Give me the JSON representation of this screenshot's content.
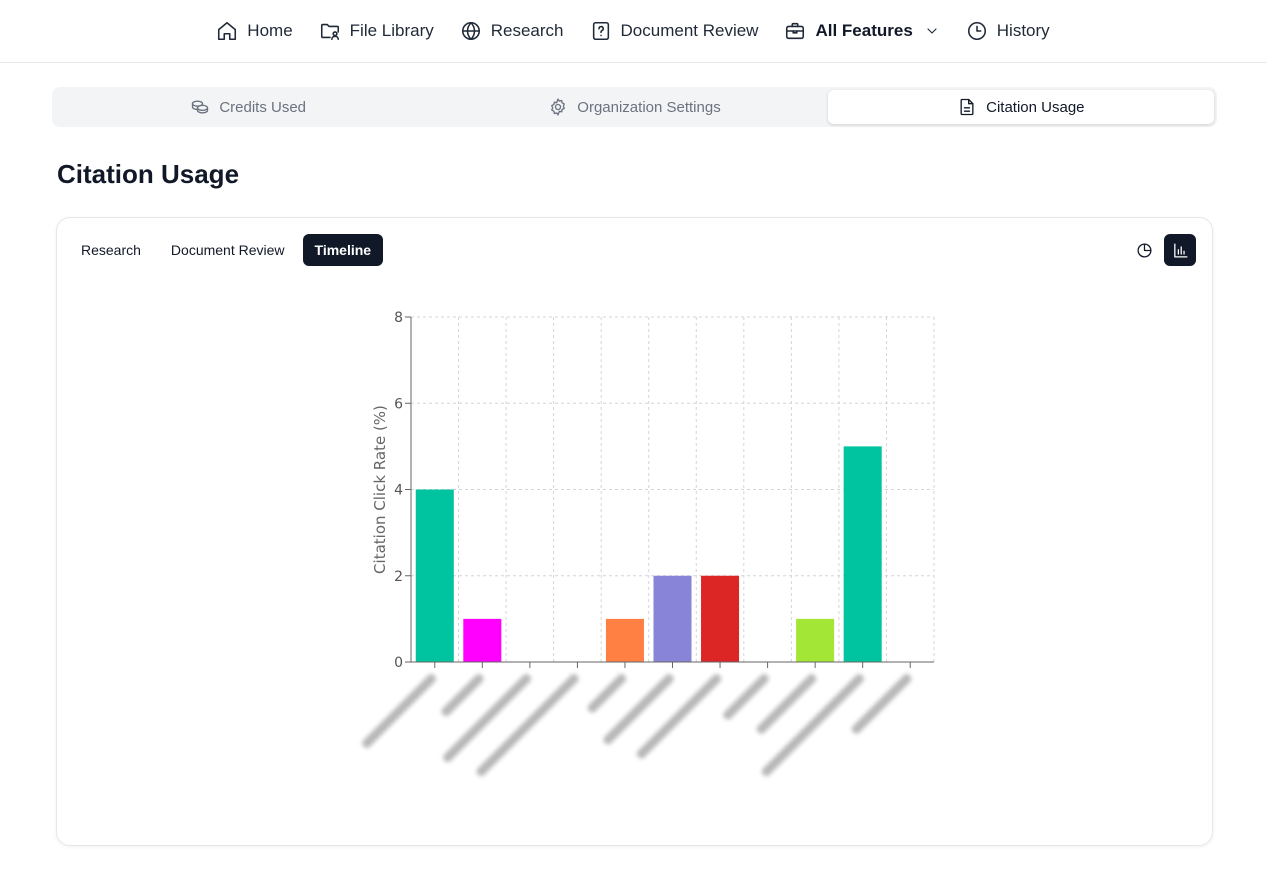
{
  "nav": {
    "items": [
      {
        "label": "Home",
        "icon": "home-icon"
      },
      {
        "label": "File Library",
        "icon": "folder-user-icon"
      },
      {
        "label": "Research",
        "icon": "globe-icon"
      },
      {
        "label": "Document Review",
        "icon": "file-question-icon"
      },
      {
        "label": "All Features",
        "icon": "briefcase-icon"
      },
      {
        "label": "History",
        "icon": "clock-icon"
      }
    ]
  },
  "settings_tabs": [
    {
      "label": "Credits Used",
      "icon": "coins-icon"
    },
    {
      "label": "Organization Settings",
      "icon": "gear-icon"
    },
    {
      "label": "Citation Usage",
      "icon": "document-icon",
      "active": true
    }
  ],
  "page": {
    "title": "Citation Usage"
  },
  "card": {
    "tabs": [
      {
        "label": "Research"
      },
      {
        "label": "Document Review"
      },
      {
        "label": "Timeline",
        "active": true
      }
    ],
    "view_toggle": [
      {
        "icon": "pie-chart-icon",
        "active": false
      },
      {
        "icon": "bar-chart-icon",
        "active": true
      }
    ]
  },
  "chart_data": {
    "type": "bar",
    "ylabel": "Citation Click Rate (%)",
    "ylim": [
      0,
      8
    ],
    "yticks": [
      0,
      2,
      4,
      6,
      8
    ],
    "grid": true,
    "categories": [
      "",
      "",
      "",
      "",
      "",
      "",
      "",
      "",
      "",
      "",
      ""
    ],
    "values": [
      4,
      1,
      0,
      0,
      1,
      2,
      2,
      0,
      1,
      5,
      0
    ],
    "colors": [
      "#00c49f",
      "#ff00ff",
      "#00c49f",
      "#00c49f",
      "#ff8042",
      "#8884d8",
      "#dc2626",
      "#00c49f",
      "#a3e635",
      "#00c49f",
      "#00c49f"
    ]
  }
}
